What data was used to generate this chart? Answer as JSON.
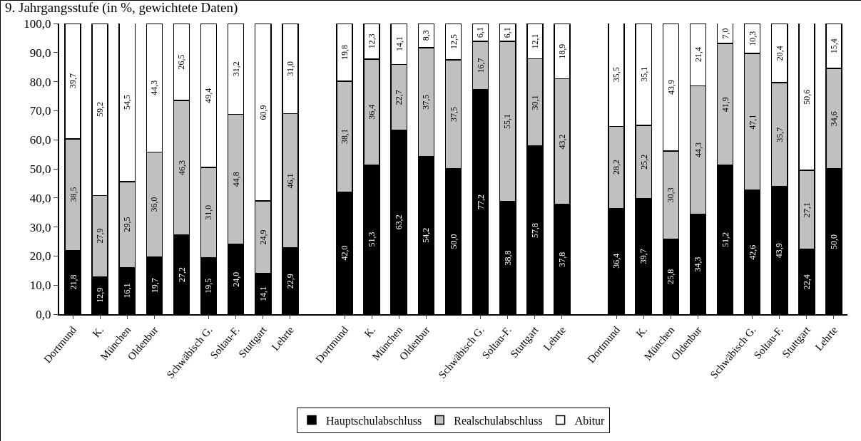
{
  "chart_data": {
    "type": "bar",
    "stacked": true,
    "title": "9. Jahrgangsstufe (in %, gewichtete Daten)",
    "categories": [
      "Dortmund",
      "K.",
      "München",
      "Oldenbur",
      null,
      "Schwäbisch G.",
      "Soltau-F.",
      "Stuttgart",
      "Lehrte",
      null,
      "Dortmund",
      "K.",
      "München",
      "Oldenbur",
      null,
      "Schwäbisch G.",
      "Soltau-F.",
      "Stuttgart",
      "Lehrte",
      null,
      "Dortmund",
      "K.",
      "München",
      "Oldenbur",
      null,
      "Schwäbisch G.",
      "Soltau-F.",
      "Stuttgart",
      "Lehrte"
    ],
    "series": [
      {
        "name": "Hauptschulabschluss",
        "color": "#000000",
        "values": [
          21.8,
          12.9,
          16.1,
          19.7,
          27.2,
          19.5,
          24.0,
          14.1,
          22.9,
          null,
          42.0,
          51.3,
          63.2,
          54.2,
          50.0,
          77.2,
          38.8,
          57.8,
          37.8,
          null,
          36.4,
          39.7,
          25.8,
          34.3,
          51.2,
          42.6,
          43.9,
          22.4,
          50.0
        ],
        "value_labels": [
          "21,8",
          "12,9",
          "16,1",
          "19,7",
          "27,2",
          "19,5",
          "24,0",
          "14,1",
          "22,9",
          null,
          "42,0",
          "51,3",
          "63,2",
          "54,2",
          "50,0",
          "77,2",
          "38,8",
          "57,8",
          "37,8",
          null,
          "36,4",
          "39,7",
          "25,8",
          "34,3",
          "51,2",
          "42,6",
          "43,9",
          "22,4",
          "50,0"
        ]
      },
      {
        "name": "Realschulabschluss",
        "color": "#c0c0c0",
        "values": [
          38.5,
          27.9,
          29.5,
          36.0,
          46.3,
          31.0,
          44.8,
          24.9,
          46.1,
          null,
          38.1,
          36.4,
          22.7,
          37.5,
          37.5,
          16.7,
          55.1,
          30.1,
          43.2,
          null,
          28.2,
          25.2,
          30.3,
          44.3,
          41.9,
          47.1,
          35.7,
          27.1,
          34.6
        ],
        "value_labels": [
          "38,5",
          "27,9",
          "29,5",
          "36,0",
          "46,3",
          "31,0",
          "44,8",
          "24,9",
          "46,1",
          null,
          "38,1",
          "36,4",
          "22,7",
          "37,5",
          "37,5",
          "16,7",
          "55,1",
          "30,1",
          "43,2",
          null,
          "28,2",
          "25,2",
          "30,3",
          "44,3",
          "41,9",
          "47,1",
          "35,7",
          "27,1",
          "34,6"
        ]
      },
      {
        "name": "Abitur",
        "color": "#ffffff",
        "values": [
          39.7,
          59.2,
          54.5,
          44.3,
          26.5,
          49.4,
          31.2,
          60.9,
          31.0,
          null,
          19.8,
          12.3,
          14.1,
          8.3,
          12.5,
          6.1,
          6.1,
          12.1,
          18.9,
          null,
          35.5,
          35.1,
          43.9,
          21.4,
          7.0,
          10.3,
          20.4,
          50.6,
          15.4
        ],
        "value_labels": [
          "39,7",
          "59,2",
          "54,5",
          "44,3",
          "26,5",
          "49,4",
          "31,2",
          "60,9",
          "31,0",
          null,
          "19,8",
          "12,3",
          "14,1",
          "8,3",
          "12,5",
          "6,1",
          "6,1",
          "12,1",
          "18,9",
          null,
          "35,5",
          "35,1",
          "43,9",
          "21,4",
          "7,0",
          "10,3",
          "20,4",
          "50,6",
          "15,4"
        ]
      }
    ],
    "ylim": [
      0,
      100
    ],
    "yticks": [
      {
        "value": 0,
        "label": "0,0"
      },
      {
        "value": 10,
        "label": "10,0"
      },
      {
        "value": 20,
        "label": "20,0"
      },
      {
        "value": 30,
        "label": "30,0"
      },
      {
        "value": 40,
        "label": "40,0"
      },
      {
        "value": 50,
        "label": "50,0"
      },
      {
        "value": 60,
        "label": "60,0"
      },
      {
        "value": 70,
        "label": "70,0"
      },
      {
        "value": 80,
        "label": "80,0"
      },
      {
        "value": 90,
        "label": "90,0"
      },
      {
        "value": 100,
        "label": "100,0"
      }
    ],
    "grid": false,
    "legend": "bottom"
  }
}
